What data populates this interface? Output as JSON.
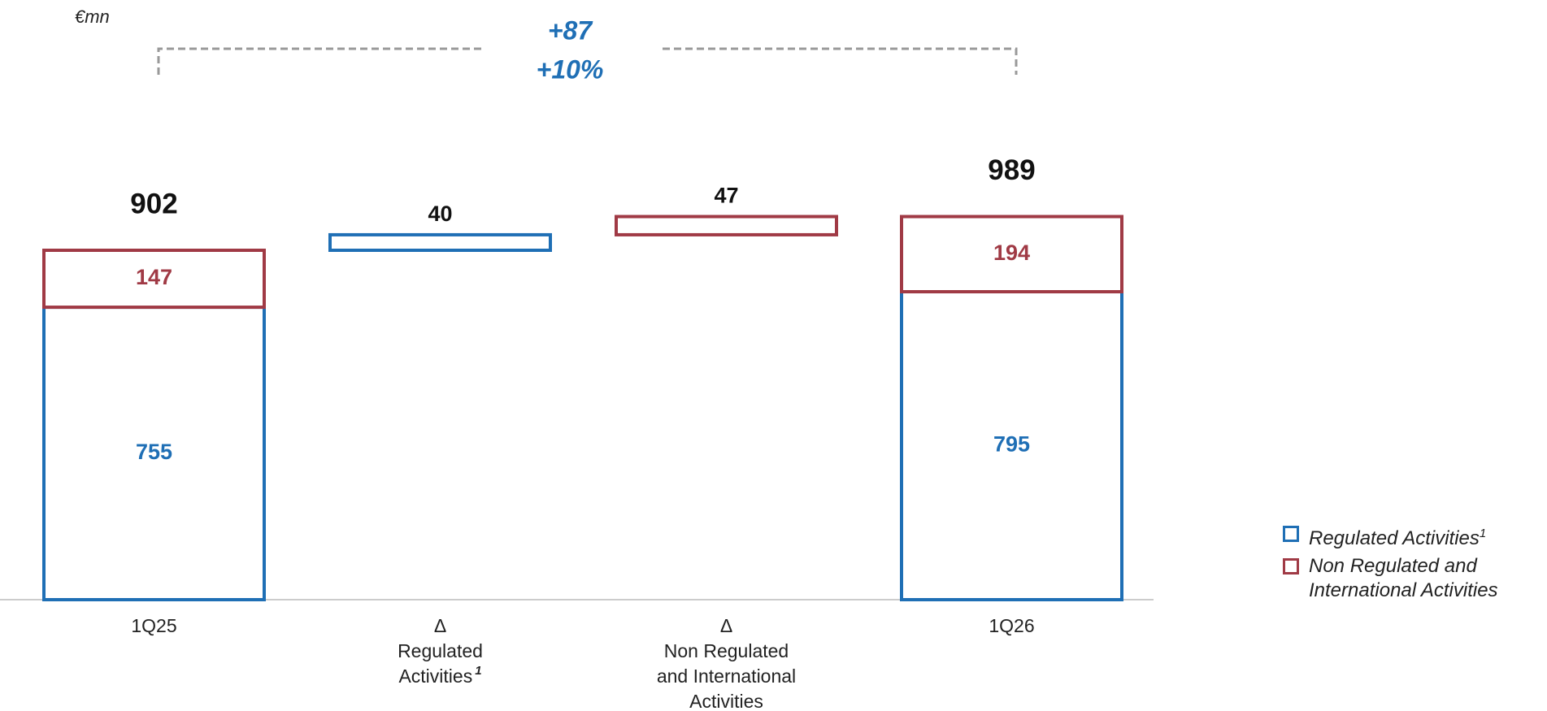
{
  "chart_data": {
    "type": "waterfall",
    "unit": "€mn",
    "categories": [
      [
        "1Q25"
      ],
      [
        "Δ",
        "Regulated",
        "Activities"
      ],
      [
        "Δ",
        "Non Regulated",
        "and International",
        "Activities"
      ],
      [
        "1Q26"
      ]
    ],
    "category_notes": [
      null,
      "1",
      null,
      null
    ],
    "series": [
      {
        "name": "Regulated Activities",
        "note": "1",
        "color": "#1f6fb5",
        "values": [
          755,
          40,
          null,
          795
        ]
      },
      {
        "name": "Non Regulated and International Activities",
        "color": "#a03a45",
        "values": [
          147,
          null,
          47,
          194
        ]
      }
    ],
    "totals": [
      902,
      null,
      null,
      989
    ],
    "annotations": [
      "+87",
      "+10%"
    ],
    "annotation_color": "#1f6fb5"
  }
}
